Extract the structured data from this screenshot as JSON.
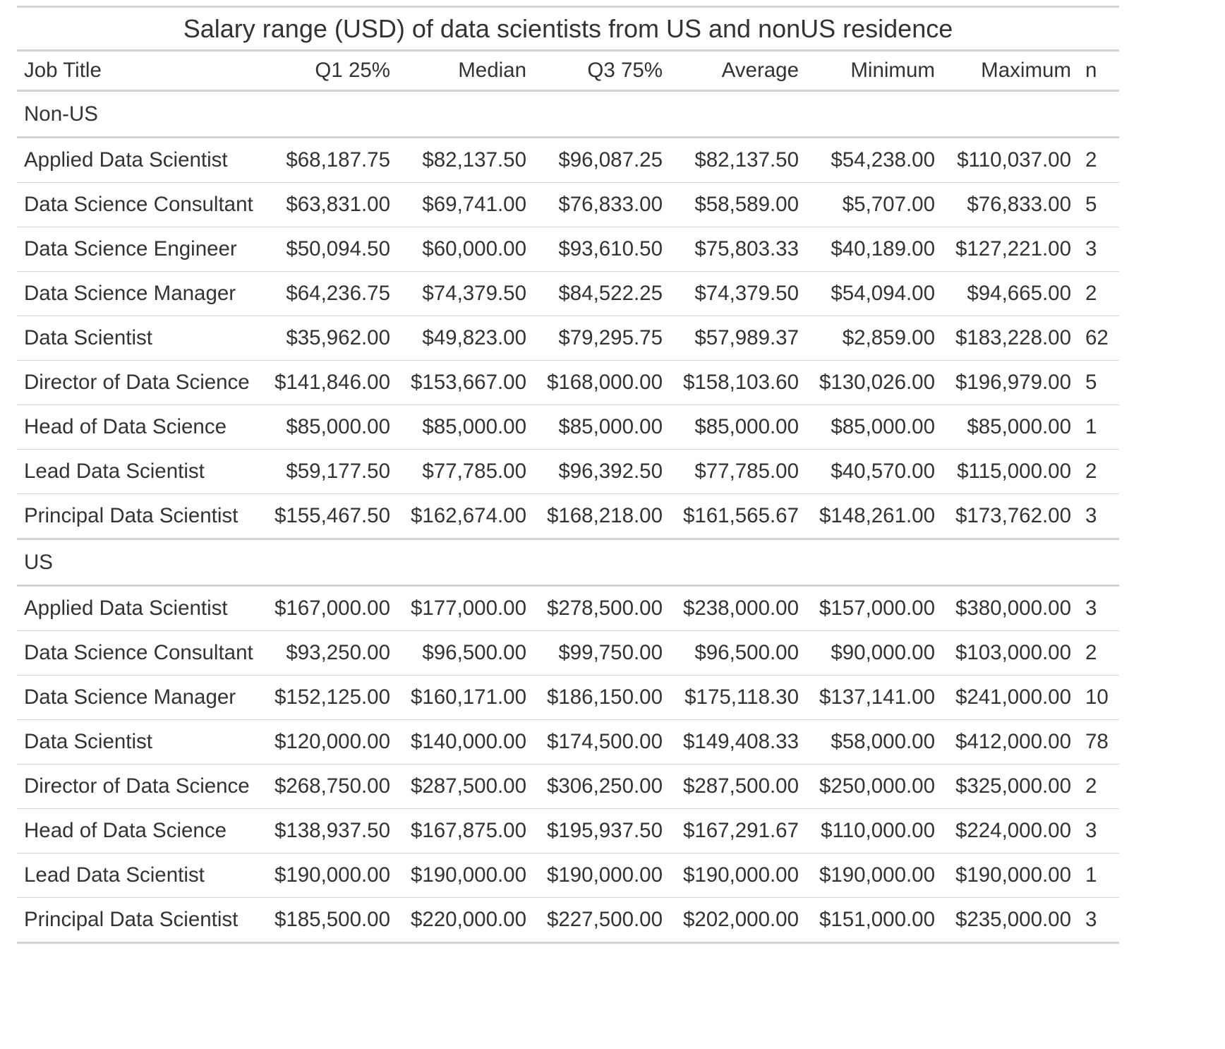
{
  "title": "Salary range (USD) of data scientists from US and nonUS residence",
  "columns": [
    "Job Title",
    "Q1 25%",
    "Median",
    "Q3 75%",
    "Average",
    "Minimum",
    "Maximum",
    "n"
  ],
  "groups": [
    {
      "label": "Non-US",
      "rows": [
        [
          "Applied Data Scientist",
          "$68,187.75",
          "$82,137.50",
          "$96,087.25",
          "$82,137.50",
          "$54,238.00",
          "$110,037.00",
          "2"
        ],
        [
          "Data Science Consultant",
          "$63,831.00",
          "$69,741.00",
          "$76,833.00",
          "$58,589.00",
          "$5,707.00",
          "$76,833.00",
          "5"
        ],
        [
          "Data Science Engineer",
          "$50,094.50",
          "$60,000.00",
          "$93,610.50",
          "$75,803.33",
          "$40,189.00",
          "$127,221.00",
          "3"
        ],
        [
          "Data Science Manager",
          "$64,236.75",
          "$74,379.50",
          "$84,522.25",
          "$74,379.50",
          "$54,094.00",
          "$94,665.00",
          "2"
        ],
        [
          "Data Scientist",
          "$35,962.00",
          "$49,823.00",
          "$79,295.75",
          "$57,989.37",
          "$2,859.00",
          "$183,228.00",
          "62"
        ],
        [
          "Director of Data Science",
          "$141,846.00",
          "$153,667.00",
          "$168,000.00",
          "$158,103.60",
          "$130,026.00",
          "$196,979.00",
          "5"
        ],
        [
          "Head of Data Science",
          "$85,000.00",
          "$85,000.00",
          "$85,000.00",
          "$85,000.00",
          "$85,000.00",
          "$85,000.00",
          "1"
        ],
        [
          "Lead Data Scientist",
          "$59,177.50",
          "$77,785.00",
          "$96,392.50",
          "$77,785.00",
          "$40,570.00",
          "$115,000.00",
          "2"
        ],
        [
          "Principal Data Scientist",
          "$155,467.50",
          "$162,674.00",
          "$168,218.00",
          "$161,565.67",
          "$148,261.00",
          "$173,762.00",
          "3"
        ]
      ]
    },
    {
      "label": "US",
      "rows": [
        [
          "Applied Data Scientist",
          "$167,000.00",
          "$177,000.00",
          "$278,500.00",
          "$238,000.00",
          "$157,000.00",
          "$380,000.00",
          "3"
        ],
        [
          "Data Science Consultant",
          "$93,250.00",
          "$96,500.00",
          "$99,750.00",
          "$96,500.00",
          "$90,000.00",
          "$103,000.00",
          "2"
        ],
        [
          "Data Science Manager",
          "$152,125.00",
          "$160,171.00",
          "$186,150.00",
          "$175,118.30",
          "$137,141.00",
          "$241,000.00",
          "10"
        ],
        [
          "Data Scientist",
          "$120,000.00",
          "$140,000.00",
          "$174,500.00",
          "$149,408.33",
          "$58,000.00",
          "$412,000.00",
          "78"
        ],
        [
          "Director of Data Science",
          "$268,750.00",
          "$287,500.00",
          "$306,250.00",
          "$287,500.00",
          "$250,000.00",
          "$325,000.00",
          "2"
        ],
        [
          "Head of Data Science",
          "$138,937.50",
          "$167,875.00",
          "$195,937.50",
          "$167,291.67",
          "$110,000.00",
          "$224,000.00",
          "3"
        ],
        [
          "Lead Data Scientist",
          "$190,000.00",
          "$190,000.00",
          "$190,000.00",
          "$190,000.00",
          "$190,000.00",
          "$190,000.00",
          "1"
        ],
        [
          "Principal Data Scientist",
          "$185,500.00",
          "$220,000.00",
          "$227,500.00",
          "$202,000.00",
          "$151,000.00",
          "$235,000.00",
          "3"
        ]
      ]
    }
  ]
}
